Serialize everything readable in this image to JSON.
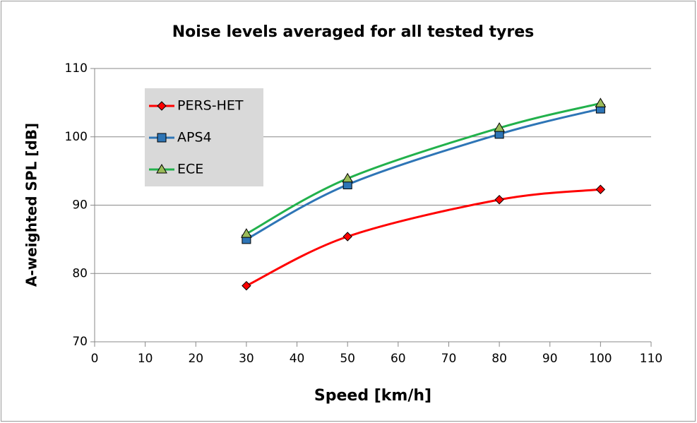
{
  "chart_data": {
    "type": "line",
    "title": "Noise levels averaged for all tested tyres",
    "xlabel": "Speed [km/h]",
    "ylabel": "A-weighted SPL [dB]",
    "xlim": [
      0,
      110
    ],
    "xticks": [
      0,
      10,
      20,
      30,
      40,
      50,
      60,
      70,
      80,
      90,
      100,
      110
    ],
    "ylim": [
      70,
      110
    ],
    "yticks": [
      70,
      80,
      90,
      100,
      110
    ],
    "grid": true,
    "smooth": true,
    "legend": "upper left",
    "series": [
      {
        "name": "PERS-HET",
        "color": "#ff0000",
        "marker": "diamond",
        "marker_color": "#ff0000",
        "x": [
          30,
          50,
          80,
          100
        ],
        "values": [
          78.2,
          85.4,
          90.8,
          92.3
        ]
      },
      {
        "name": "APS4",
        "color": "#2e75b6",
        "marker": "square",
        "marker_color": "#2e75b6",
        "x": [
          30,
          50,
          80,
          100
        ],
        "values": [
          85.0,
          93.0,
          100.4,
          104.1
        ]
      },
      {
        "name": "ECE",
        "color": "#22b14c",
        "marker": "triangle",
        "marker_color": "#9bbb59",
        "x": [
          30,
          50,
          80,
          100
        ],
        "values": [
          85.8,
          93.9,
          101.3,
          104.9
        ]
      }
    ]
  }
}
